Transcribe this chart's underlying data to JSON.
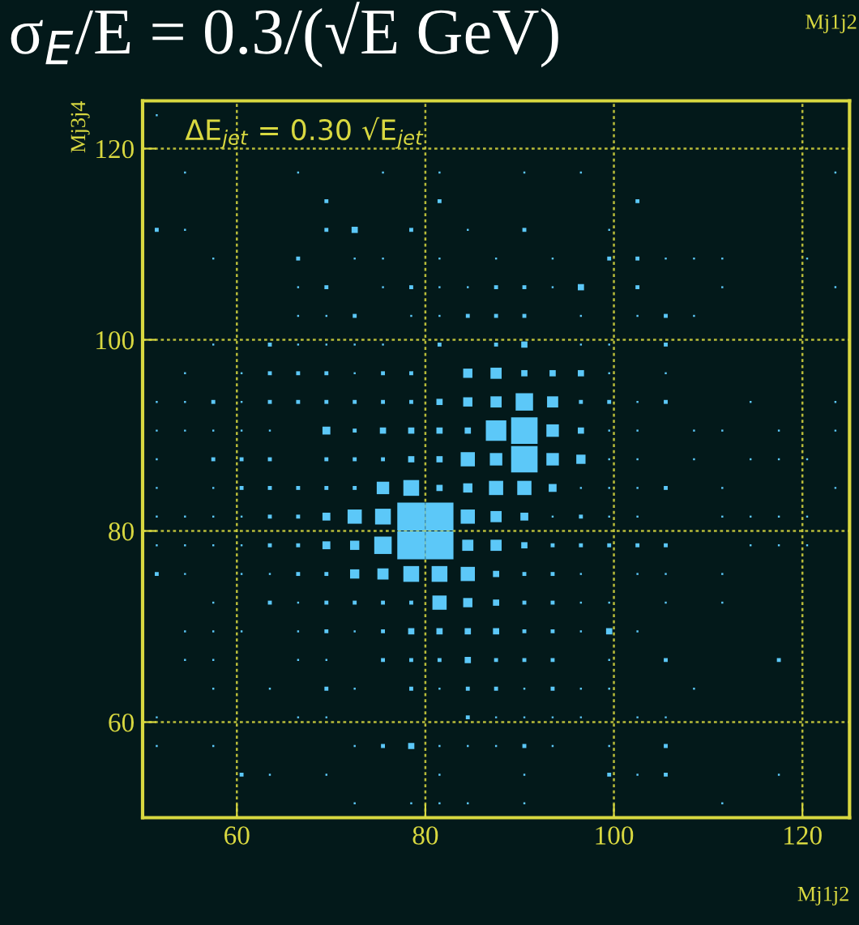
{
  "chart_data": {
    "type": "bubble",
    "title": "σ$_{E}$/E = 0.3/(√E GeV)",
    "xlabel": "Mj1j2",
    "ylabel": "Mj3j4",
    "annotations": [
      "ΔE$_{jet}$ = 0.30 √E$_{jet}$",
      "Mj1j2"
    ],
    "color": "#5cc8f8",
    "marker": "square",
    "grid": true,
    "legend": false,
    "xlim": [
      50,
      125
    ],
    "ylim": [
      50,
      125
    ],
    "xticks": [
      60,
      80,
      100,
      120
    ],
    "yticks": [
      60,
      80,
      100,
      120
    ],
    "series": [
      {
        "x": [
          51.5
        ],
        "values": [
          123.5
        ],
        "sizes": [
          0.005
        ]
      },
      {
        "x": [
          54.5,
          66.5,
          75.5,
          81.5,
          90.5,
          96.5,
          123.5
        ],
        "values": [
          117.5,
          117.5,
          117.5,
          117.5,
          117.5,
          117.5,
          117.5
        ],
        "sizes": [
          0.005,
          0.005,
          0.005,
          0.005,
          0.005,
          0.005,
          0.005
        ]
      },
      {
        "x": [
          69.5,
          81.5,
          102.5
        ],
        "values": [
          114.5,
          114.5,
          114.5
        ],
        "sizes": [
          0.02,
          0.02,
          0.02
        ]
      },
      {
        "x": [
          51.5,
          54.5,
          69.5,
          72.5,
          78.5,
          84.5,
          90.5,
          99.5
        ],
        "values": [
          111.5,
          111.5,
          111.5,
          111.5,
          111.5,
          111.5,
          111.5,
          111.5
        ],
        "sizes": [
          0.02,
          0.005,
          0.02,
          0.05,
          0.02,
          0.005,
          0.02,
          0.005
        ]
      },
      {
        "x": [
          57.5,
          66.5,
          72.5,
          75.5,
          81.5,
          87.5,
          93.5,
          99.5,
          102.5,
          105.5,
          108.5,
          111.5,
          120.5
        ],
        "values": [
          108.5,
          108.5,
          108.5,
          108.5,
          108.5,
          108.5,
          108.5,
          108.5,
          108.5,
          108.5,
          108.5,
          108.5,
          108.5
        ],
        "sizes": [
          0.005,
          0.02,
          0.005,
          0.005,
          0.005,
          0.005,
          0.005,
          0.02,
          0.02,
          0.005,
          0.005,
          0.005,
          0.005
        ]
      },
      {
        "x": [
          66.5,
          69.5,
          75.5,
          78.5,
          81.5,
          84.5,
          87.5,
          90.5,
          93.5,
          96.5,
          102.5,
          111.5,
          123.5
        ],
        "values": [
          105.5,
          105.5,
          105.5,
          105.5,
          105.5,
          105.5,
          105.5,
          105.5,
          105.5,
          105.5,
          105.5,
          105.5,
          105.5
        ],
        "sizes": [
          0.005,
          0.02,
          0.005,
          0.02,
          0.005,
          0.005,
          0.02,
          0.02,
          0.005,
          0.05,
          0.02,
          0.005,
          0.005
        ]
      },
      {
        "x": [
          66.5,
          69.5,
          72.5,
          78.5,
          81.5,
          84.5,
          87.5,
          90.5,
          96.5,
          102.5,
          105.5,
          108.5
        ],
        "values": [
          102.5,
          102.5,
          102.5,
          102.5,
          102.5,
          102.5,
          102.5,
          102.5,
          102.5,
          102.5,
          102.5,
          102.5
        ],
        "sizes": [
          0.005,
          0.005,
          0.02,
          0.005,
          0.005,
          0.02,
          0.02,
          0.02,
          0.005,
          0.005,
          0.02,
          0.005
        ]
      },
      {
        "x": [
          57.5,
          63.5,
          66.5,
          69.5,
          72.5,
          75.5,
          81.5,
          87.5,
          90.5,
          96.5,
          99.5,
          105.5
        ],
        "values": [
          99.5,
          99.5,
          99.5,
          99.5,
          99.5,
          99.5,
          99.5,
          99.5,
          99.5,
          99.5,
          99.5,
          99.5
        ],
        "sizes": [
          0.005,
          0.02,
          0.005,
          0.005,
          0.005,
          0.005,
          0.02,
          0.02,
          0.05,
          0.005,
          0.005,
          0.02
        ]
      },
      {
        "x": [
          54.5,
          60.5,
          63.5,
          66.5,
          69.5,
          72.5,
          75.5,
          78.5,
          84.5,
          87.5,
          90.5,
          93.5,
          96.5,
          99.5,
          105.5
        ],
        "values": [
          96.5,
          96.5,
          96.5,
          96.5,
          96.5,
          96.5,
          96.5,
          96.5,
          96.5,
          96.5,
          96.5,
          96.5,
          96.5,
          96.5,
          96.5
        ],
        "sizes": [
          0.005,
          0.005,
          0.02,
          0.02,
          0.02,
          0.005,
          0.02,
          0.02,
          0.11,
          0.16,
          0.05,
          0.05,
          0.05,
          0.005,
          0.005
        ]
      },
      {
        "x": [
          51.5,
          54.5,
          57.5,
          60.5,
          63.5,
          66.5,
          69.5,
          72.5,
          75.5,
          78.5,
          81.5,
          84.5,
          87.5,
          90.5,
          93.5,
          96.5,
          99.5,
          102.5,
          105.5,
          114.5,
          123.5
        ],
        "values": [
          93.5,
          93.5,
          93.5,
          93.5,
          93.5,
          93.5,
          93.5,
          93.5,
          93.5,
          93.5,
          93.5,
          93.5,
          93.5,
          93.5,
          93.5,
          93.5,
          93.5,
          93.5,
          93.5,
          93.5,
          93.5
        ],
        "sizes": [
          0.005,
          0.005,
          0.02,
          0.005,
          0.02,
          0.02,
          0.02,
          0.02,
          0.02,
          0.02,
          0.05,
          0.11,
          0.16,
          0.39,
          0.16,
          0.02,
          0.02,
          0.005,
          0.02,
          0.005,
          0.005
        ]
      },
      {
        "x": [
          51.5,
          54.5,
          57.5,
          60.5,
          63.5,
          69.5,
          72.5,
          75.5,
          78.5,
          81.5,
          84.5,
          87.5,
          90.5,
          93.5,
          96.5,
          99.5,
          102.5,
          108.5,
          111.5,
          117.5,
          123.5
        ],
        "values": [
          90.5,
          90.5,
          90.5,
          90.5,
          90.5,
          90.5,
          90.5,
          90.5,
          90.5,
          90.5,
          90.5,
          90.5,
          90.5,
          90.5,
          90.5,
          90.5,
          90.5,
          90.5,
          90.5,
          90.5,
          90.5
        ],
        "sizes": [
          0.005,
          0.005,
          0.005,
          0.005,
          0.005,
          0.08,
          0.02,
          0.05,
          0.05,
          0.05,
          0.05,
          0.54,
          0.9,
          0.2,
          0.05,
          0.005,
          0.005,
          0.005,
          0.005,
          0.005,
          0.005
        ]
      },
      {
        "x": [
          51.5,
          57.5,
          60.5,
          63.5,
          69.5,
          72.5,
          75.5,
          78.5,
          81.5,
          84.5,
          87.5,
          90.5,
          93.5,
          96.5,
          99.5,
          102.5,
          108.5,
          114.5,
          117.5,
          120.5
        ],
        "values": [
          87.5,
          87.5,
          87.5,
          87.5,
          87.5,
          87.5,
          87.5,
          87.5,
          87.5,
          87.5,
          87.5,
          87.5,
          87.5,
          87.5,
          87.5,
          87.5,
          87.5,
          87.5,
          87.5,
          87.5
        ],
        "sizes": [
          0.005,
          0.02,
          0.02,
          0.02,
          0.02,
          0.02,
          0.02,
          0.05,
          0.05,
          0.26,
          0.2,
          0.9,
          0.2,
          0.11,
          0.005,
          0.005,
          0.005,
          0.005,
          0.005,
          0.005
        ]
      },
      {
        "x": [
          51.5,
          57.5,
          60.5,
          63.5,
          66.5,
          69.5,
          72.5,
          75.5,
          78.5,
          81.5,
          84.5,
          87.5,
          90.5,
          93.5,
          96.5,
          99.5,
          102.5,
          105.5,
          111.5,
          123.5
        ],
        "values": [
          84.5,
          84.5,
          84.5,
          84.5,
          84.5,
          84.5,
          84.5,
          84.5,
          84.5,
          84.5,
          84.5,
          84.5,
          84.5,
          84.5,
          84.5,
          84.5,
          84.5,
          84.5,
          84.5,
          84.5
        ],
        "sizes": [
          0.005,
          0.005,
          0.02,
          0.02,
          0.02,
          0.02,
          0.02,
          0.2,
          0.32,
          0.05,
          0.11,
          0.26,
          0.26,
          0.08,
          0.005,
          0.005,
          0.005,
          0.02,
          0.005,
          0.005
        ]
      },
      {
        "x": [
          51.5,
          54.5,
          57.5,
          60.5,
          63.5,
          66.5,
          69.5,
          72.5,
          75.5,
          78.5,
          81.5,
          84.5,
          87.5,
          90.5,
          93.5,
          96.5,
          99.5,
          102.5,
          111.5,
          114.5,
          117.5,
          120.5
        ],
        "values": [
          81.5,
          81.5,
          81.5,
          81.5,
          81.5,
          81.5,
          81.5,
          81.5,
          81.5,
          81.5,
          81.5,
          81.5,
          81.5,
          81.5,
          81.5,
          81.5,
          81.5,
          81.5,
          81.5,
          81.5,
          81.5,
          81.5
        ],
        "sizes": [
          0.005,
          0.005,
          0.005,
          0.005,
          0.02,
          0.02,
          0.08,
          0.26,
          0.32,
          1,
          1,
          0.26,
          0.16,
          0.08,
          0.005,
          0.02,
          0.005,
          0.005,
          0.005,
          0.005,
          0.005,
          0.005
        ]
      },
      {
        "x": [
          51.5,
          54.5,
          57.5,
          60.5,
          63.5,
          66.5,
          69.5,
          72.5,
          75.5,
          78.5,
          81.5,
          84.5,
          87.5,
          90.5,
          93.5,
          96.5,
          99.5,
          102.5,
          105.5,
          114.5,
          117.5,
          120.5
        ],
        "values": [
          78.5,
          78.5,
          78.5,
          78.5,
          78.5,
          78.5,
          78.5,
          78.5,
          78.5,
          78.5,
          78.5,
          78.5,
          78.5,
          78.5,
          78.5,
          78.5,
          78.5,
          78.5,
          78.5,
          78.5,
          78.5,
          78.5
        ],
        "sizes": [
          0.005,
          0.005,
          0.005,
          0.005,
          0.02,
          0.02,
          0.08,
          0.11,
          0.39,
          1,
          1,
          0.16,
          0.16,
          0.05,
          0.02,
          0.02,
          0.02,
          0.02,
          0.02,
          0.005,
          0.005,
          0.005
        ]
      },
      {
        "x": [
          51.5,
          54.5,
          60.5,
          63.5,
          66.5,
          69.5,
          72.5,
          75.5,
          78.5,
          81.5,
          84.5,
          87.5,
          90.5,
          93.5,
          96.5,
          102.5,
          105.5,
          111.5
        ],
        "values": [
          75.5,
          75.5,
          75.5,
          75.5,
          75.5,
          75.5,
          75.5,
          75.5,
          75.5,
          75.5,
          75.5,
          75.5,
          75.5,
          75.5,
          75.5,
          75.5,
          75.5,
          75.5
        ],
        "sizes": [
          0.02,
          0.005,
          0.005,
          0.005,
          0.02,
          0.02,
          0.11,
          0.16,
          0.32,
          0.32,
          0.26,
          0.05,
          0.02,
          0.02,
          0.005,
          0.005,
          0.005,
          0.005
        ]
      },
      {
        "x": [
          57.5,
          63.5,
          66.5,
          69.5,
          72.5,
          75.5,
          78.5,
          81.5,
          84.5,
          87.5,
          90.5,
          93.5,
          96.5,
          99.5,
          105.5,
          111.5
        ],
        "values": [
          72.5,
          72.5,
          72.5,
          72.5,
          72.5,
          72.5,
          72.5,
          72.5,
          72.5,
          72.5,
          72.5,
          72.5,
          72.5,
          72.5,
          72.5,
          72.5
        ],
        "sizes": [
          0.005,
          0.02,
          0.005,
          0.02,
          0.02,
          0.02,
          0.02,
          0.26,
          0.11,
          0.05,
          0.02,
          0.02,
          0.005,
          0.005,
          0.005,
          0.005
        ]
      },
      {
        "x": [
          54.5,
          57.5,
          60.5,
          66.5,
          69.5,
          72.5,
          75.5,
          78.5,
          81.5,
          84.5,
          87.5,
          90.5,
          93.5,
          96.5,
          99.5,
          102.5
        ],
        "values": [
          69.5,
          69.5,
          69.5,
          69.5,
          69.5,
          69.5,
          69.5,
          69.5,
          69.5,
          69.5,
          69.5,
          69.5,
          69.5,
          69.5,
          69.5,
          69.5
        ],
        "sizes": [
          0.005,
          0.005,
          0.005,
          0.005,
          0.02,
          0.005,
          0.02,
          0.05,
          0.05,
          0.05,
          0.05,
          0.02,
          0.02,
          0.005,
          0.05,
          0.005
        ]
      },
      {
        "x": [
          54.5,
          57.5,
          66.5,
          69.5,
          75.5,
          78.5,
          81.5,
          84.5,
          87.5,
          90.5,
          93.5,
          99.5,
          105.5,
          117.5
        ],
        "values": [
          66.5,
          66.5,
          66.5,
          66.5,
          66.5,
          66.5,
          66.5,
          66.5,
          66.5,
          66.5,
          66.5,
          66.5,
          66.5,
          66.5
        ],
        "sizes": [
          0.005,
          0.005,
          0.005,
          0.005,
          0.02,
          0.02,
          0.02,
          0.05,
          0.02,
          0.02,
          0.02,
          0.005,
          0.02,
          0.02
        ]
      },
      {
        "x": [
          57.5,
          63.5,
          69.5,
          72.5,
          78.5,
          81.5,
          84.5,
          87.5,
          90.5,
          93.5,
          96.5,
          99.5,
          108.5
        ],
        "values": [
          63.5,
          63.5,
          63.5,
          63.5,
          63.5,
          63.5,
          63.5,
          63.5,
          63.5,
          63.5,
          63.5,
          63.5,
          63.5
        ],
        "sizes": [
          0.005,
          0.005,
          0.02,
          0.005,
          0.02,
          0.005,
          0.02,
          0.02,
          0.005,
          0.02,
          0.005,
          0.005,
          0.005
        ]
      },
      {
        "x": [
          51.5,
          66.5,
          69.5,
          84.5,
          87.5,
          90.5,
          93.5,
          96.5,
          102.5,
          105.5
        ],
        "values": [
          60.5,
          60.5,
          60.5,
          60.5,
          60.5,
          60.5,
          60.5,
          60.5,
          60.5,
          60.5
        ],
        "sizes": [
          0.005,
          0.005,
          0.005,
          0.02,
          0.005,
          0.005,
          0.005,
          0.005,
          0.005,
          0.005
        ]
      },
      {
        "x": [
          51.5,
          57.5,
          72.5,
          75.5,
          78.5,
          81.5,
          84.5,
          87.5,
          90.5,
          93.5,
          99.5,
          105.5
        ],
        "values": [
          57.5,
          57.5,
          57.5,
          57.5,
          57.5,
          57.5,
          57.5,
          57.5,
          57.5,
          57.5,
          57.5,
          57.5
        ],
        "sizes": [
          0.005,
          0.005,
          0.005,
          0.02,
          0.05,
          0.005,
          0.005,
          0.005,
          0.02,
          0.005,
          0.005,
          0.02
        ]
      },
      {
        "x": [
          60.5,
          63.5,
          69.5,
          81.5,
          90.5,
          99.5,
          102.5,
          105.5,
          117.5
        ],
        "values": [
          54.5,
          54.5,
          54.5,
          54.5,
          54.5,
          54.5,
          54.5,
          54.5,
          54.5
        ],
        "sizes": [
          0.02,
          0.005,
          0.005,
          0.005,
          0.005,
          0.02,
          0.005,
          0.02,
          0.005
        ]
      },
      {
        "x": [
          72.5,
          78.5,
          81.5,
          84.5,
          90.5,
          111.5
        ],
        "values": [
          51.5,
          51.5,
          51.5,
          51.5,
          51.5,
          51.5
        ],
        "sizes": [
          0.005,
          0.005,
          0.005,
          0.005,
          0.005,
          0.005
        ]
      }
    ]
  }
}
